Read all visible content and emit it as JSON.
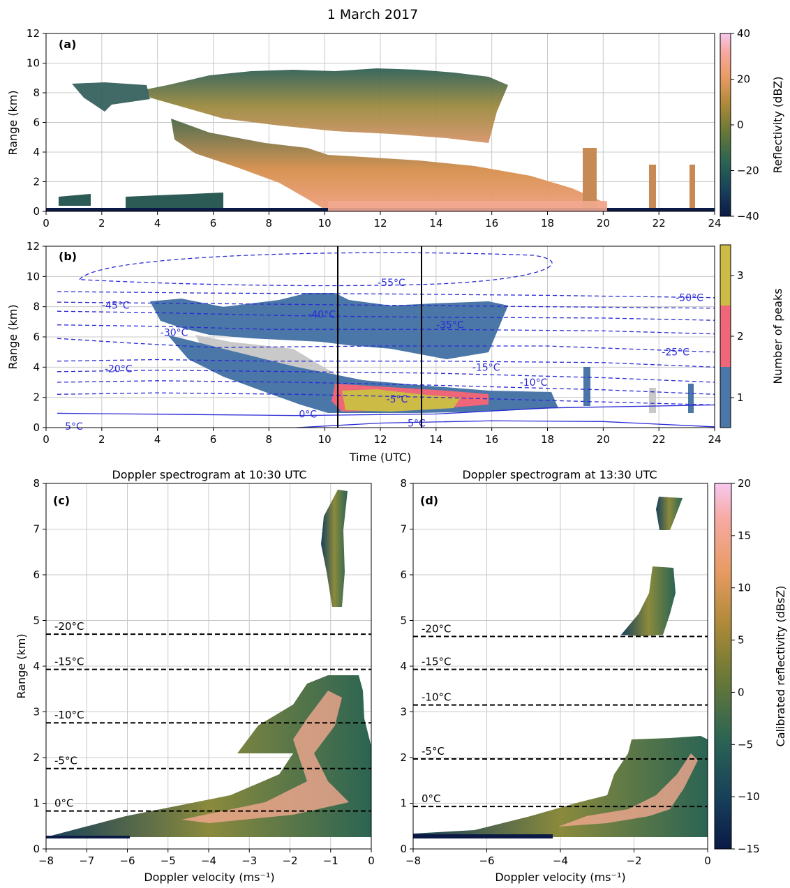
{
  "figure": {
    "suptitle": "1 March 2017"
  },
  "colors": {
    "ref_cmap": [
      "#0a1a45",
      "#17405a",
      "#2b6453",
      "#6f7a35",
      "#b08a3a",
      "#e89b63",
      "#f6a9a1",
      "#f6c8ee"
    ],
    "peaks": [
      "#4a76a8",
      "#ee6677",
      "#ccbb44"
    ],
    "isotherm": "#2b2bd6",
    "grid": "#c8c8c8",
    "shadow": "#c9c9c9"
  },
  "chart_data": [
    {
      "id": "a",
      "type": "heatmap",
      "panel_label": "(a)",
      "xlabel": "",
      "ylabel": "Range (km)",
      "xlim": [
        0,
        24
      ],
      "ylim": [
        0,
        12
      ],
      "xticks": [
        "0",
        "2",
        "4",
        "6",
        "8",
        "10",
        "12",
        "14",
        "16",
        "18",
        "20",
        "22",
        "24"
      ],
      "yticks": [
        "0",
        "2",
        "4",
        "6",
        "8",
        "10",
        "12"
      ],
      "grid": true,
      "colorbar": {
        "label": "Reflectivity (dBZ)",
        "range": [
          -40,
          40
        ],
        "ticks": [
          "40",
          "20",
          "0",
          "−20",
          "−40"
        ]
      }
    },
    {
      "id": "b",
      "type": "heatmap",
      "panel_label": "(b)",
      "xlabel": "Time (UTC)",
      "ylabel": "Range (km)",
      "xlim": [
        0,
        24
      ],
      "ylim": [
        0,
        12
      ],
      "xticks": [
        "0",
        "2",
        "4",
        "6",
        "8",
        "10",
        "12",
        "14",
        "16",
        "18",
        "20",
        "22",
        "24"
      ],
      "yticks": [
        "0",
        "2",
        "4",
        "6",
        "8",
        "10",
        "12"
      ],
      "grid": true,
      "vertical_lines_utc": [
        10.5,
        13.5
      ],
      "colorbar": {
        "label": "Number of peaks",
        "categories": [
          "1",
          "2",
          "3"
        ]
      },
      "isotherm_labels": [
        {
          "text": "-55°C",
          "x": 12.4,
          "y": 9.6
        },
        {
          "text": "-50°C",
          "x": 23.1,
          "y": 8.6
        },
        {
          "text": "-45°C",
          "x": 2.5,
          "y": 8.1
        },
        {
          "text": "-40°C",
          "x": 9.9,
          "y": 7.5
        },
        {
          "text": "-35°C",
          "x": 14.5,
          "y": 6.8
        },
        {
          "text": "-30°C",
          "x": 4.6,
          "y": 6.3
        },
        {
          "text": "-25°C",
          "x": 22.6,
          "y": 5.0
        },
        {
          "text": "-20°C",
          "x": 2.6,
          "y": 3.9
        },
        {
          "text": "-15°C",
          "x": 15.8,
          "y": 4.0
        },
        {
          "text": "-10°C",
          "x": 17.5,
          "y": 3.0
        },
        {
          "text": "-5°C",
          "x": 12.6,
          "y": 1.9
        },
        {
          "text": "0°C",
          "x": 9.4,
          "y": 0.9
        },
        {
          "text": "5°C",
          "x": 13.3,
          "y": 0.3
        },
        {
          "text": "5°C",
          "x": 1.0,
          "y": 0.1
        }
      ]
    },
    {
      "id": "c",
      "type": "heatmap",
      "title": "Doppler spectrogram at 10:30 UTC",
      "panel_label": "(c)",
      "xlabel": "Doppler velocity (ms⁻¹)",
      "ylabel": "Range (km)",
      "xlim": [
        -8,
        0
      ],
      "ylim": [
        0,
        8
      ],
      "xticks": [
        "−8",
        "−7",
        "−6",
        "−5",
        "−4",
        "−3",
        "−2",
        "−1",
        "0"
      ],
      "yticks": [
        "0",
        "1",
        "2",
        "3",
        "4",
        "5",
        "6",
        "7",
        "8"
      ],
      "grid": true,
      "isotherms": [
        {
          "label": "-20°C",
          "range_km": 4.7
        },
        {
          "label": "-15°C",
          "range_km": 3.93
        },
        {
          "label": "-10°C",
          "range_km": 2.76
        },
        {
          "label": "-5°C",
          "range_km": 1.76
        },
        {
          "label": "0°C",
          "range_km": 0.83
        }
      ]
    },
    {
      "id": "d",
      "type": "heatmap",
      "title": "Doppler spectrogram at 13:30 UTC",
      "panel_label": "(d)",
      "xlabel": "Doppler velocity (ms⁻¹)",
      "ylabel": "",
      "xlim": [
        -8,
        0
      ],
      "ylim": [
        0,
        8
      ],
      "xticks": [
        "−8",
        "−6",
        "−4",
        "−2",
        "0"
      ],
      "yticks": [
        "0",
        "1",
        "2",
        "3",
        "4",
        "5",
        "6",
        "7",
        "8"
      ],
      "grid": true,
      "isotherms": [
        {
          "label": "-20°C",
          "range_km": 4.65
        },
        {
          "label": "-15°C",
          "range_km": 3.93
        },
        {
          "label": "-10°C",
          "range_km": 3.15
        },
        {
          "label": "-5°C",
          "range_km": 1.97
        },
        {
          "label": "0°C",
          "range_km": 0.93
        }
      ],
      "colorbar": {
        "label": "Calibrated reflectivity (dBsZ)",
        "range": [
          -15,
          20
        ],
        "ticks": [
          "20",
          "15",
          "10",
          "5",
          "0",
          "−5",
          "−10",
          "−15"
        ]
      }
    }
  ]
}
